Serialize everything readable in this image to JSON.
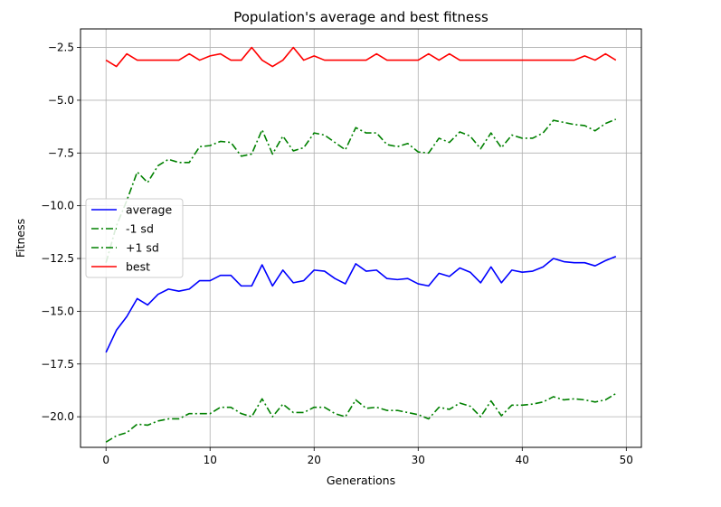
{
  "chart_data": {
    "type": "line",
    "title": "Population's average and best fitness",
    "xlabel": "Generations",
    "ylabel": "Fitness",
    "xlim": [
      -2.45,
      51.45
    ],
    "ylim": [
      -21.45,
      -1.62
    ],
    "xticks": [
      0,
      10,
      20,
      30,
      40,
      50
    ],
    "xtick_labels": [
      "0",
      "10",
      "20",
      "30",
      "40",
      "50"
    ],
    "yticks": [
      -20.0,
      -17.5,
      -15.0,
      -12.5,
      -10.0,
      -7.5,
      -5.0,
      -2.5
    ],
    "ytick_labels": [
      "−20.0",
      "−17.5",
      "−15.0",
      "−12.5",
      "−10.0",
      "−7.5",
      "−5.0",
      "−2.5"
    ],
    "grid": true,
    "legend_position": "center-left",
    "x": [
      0,
      1,
      2,
      3,
      4,
      5,
      6,
      7,
      8,
      9,
      10,
      11,
      12,
      13,
      14,
      15,
      16,
      17,
      18,
      19,
      20,
      21,
      22,
      23,
      24,
      25,
      26,
      27,
      28,
      29,
      30,
      31,
      32,
      33,
      34,
      35,
      36,
      37,
      38,
      39,
      40,
      41,
      42,
      43,
      44,
      45,
      46,
      47,
      48,
      49
    ],
    "series": [
      {
        "name": "average",
        "color": "#0000ff",
        "style": "solid",
        "values": [
          -16.95,
          -15.9,
          -15.25,
          -14.4,
          -14.7,
          -14.2,
          -13.95,
          -14.05,
          -13.95,
          -13.55,
          -13.55,
          -13.3,
          -13.3,
          -13.8,
          -13.8,
          -12.8,
          -13.8,
          -13.05,
          -13.65,
          -13.55,
          -13.05,
          -13.1,
          -13.45,
          -13.7,
          -12.75,
          -13.1,
          -13.05,
          -13.45,
          -13.5,
          -13.45,
          -13.7,
          -13.8,
          -13.2,
          -13.35,
          -12.95,
          -13.15,
          -13.65,
          -12.9,
          -13.65,
          -13.05,
          -13.15,
          -13.1,
          -12.9,
          -12.5,
          -12.65,
          -12.7,
          -12.7,
          -12.85,
          -12.6,
          -12.4
        ]
      },
      {
        "name": "-1 sd",
        "color": "#008000",
        "style": "dashdot",
        "values": [
          -21.2,
          -20.9,
          -20.75,
          -20.35,
          -20.4,
          -20.2,
          -20.1,
          -20.1,
          -19.85,
          -19.85,
          -19.85,
          -19.55,
          -19.55,
          -19.85,
          -20.0,
          -19.15,
          -20.0,
          -19.4,
          -19.8,
          -19.8,
          -19.55,
          -19.55,
          -19.85,
          -20.0,
          -19.2,
          -19.6,
          -19.55,
          -19.7,
          -19.7,
          -19.8,
          -19.9,
          -20.1,
          -19.55,
          -19.65,
          -19.35,
          -19.5,
          -20.0,
          -19.25,
          -19.95,
          -19.45,
          -19.45,
          -19.4,
          -19.3,
          -19.05,
          -19.2,
          -19.15,
          -19.2,
          -19.3,
          -19.2,
          -18.9
        ]
      },
      {
        "name": "+1 sd",
        "color": "#008000",
        "style": "dashdot",
        "values": [
          -12.7,
          -10.95,
          -9.75,
          -8.4,
          -8.9,
          -8.1,
          -7.8,
          -7.95,
          -7.95,
          -7.2,
          -7.15,
          -6.95,
          -7.0,
          -7.65,
          -7.55,
          -6.4,
          -7.55,
          -6.7,
          -7.4,
          -7.25,
          -6.55,
          -6.65,
          -7.0,
          -7.35,
          -6.3,
          -6.55,
          -6.55,
          -7.1,
          -7.2,
          -7.05,
          -7.45,
          -7.5,
          -6.8,
          -7.0,
          -6.5,
          -6.7,
          -7.3,
          -6.55,
          -7.25,
          -6.65,
          -6.8,
          -6.8,
          -6.55,
          -5.95,
          -6.05,
          -6.15,
          -6.2,
          -6.45,
          -6.1,
          -5.9
        ]
      },
      {
        "name": "best",
        "color": "#ff0000",
        "style": "solid",
        "values": [
          -3.1,
          -3.4,
          -2.8,
          -3.1,
          -3.1,
          -3.1,
          -3.1,
          -3.1,
          -2.8,
          -3.1,
          -2.9,
          -2.8,
          -3.1,
          -3.1,
          -2.5,
          -3.1,
          -3.4,
          -3.1,
          -2.5,
          -3.1,
          -2.9,
          -3.1,
          -3.1,
          -3.1,
          -3.1,
          -3.1,
          -2.8,
          -3.1,
          -3.1,
          -3.1,
          -3.1,
          -2.8,
          -3.1,
          -2.8,
          -3.1,
          -3.1,
          -3.1,
          -3.1,
          -3.1,
          -3.1,
          -3.1,
          -3.1,
          -3.1,
          -3.1,
          -3.1,
          -3.1,
          -2.9,
          -3.1,
          -2.8,
          -3.1
        ]
      }
    ]
  }
}
